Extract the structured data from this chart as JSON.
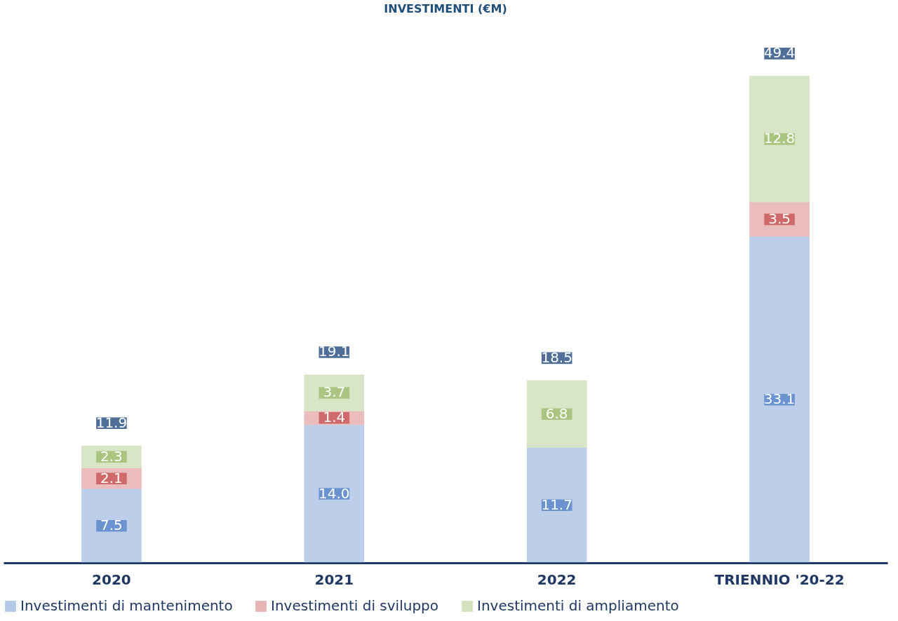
{
  "chart_data": {
    "type": "bar",
    "title": "INVESTIMENTI (€M)",
    "stacked": true,
    "legend": "bottom",
    "categories": [
      "2020",
      "2021",
      "2022",
      "TRIENNIO '20-22"
    ],
    "series": [
      {
        "name": "Investimenti di mantenimento",
        "color": "#6a93cf",
        "values": [
          7.5,
          14.0,
          11.7,
          33.1
        ],
        "value_labels": [
          "7.5",
          "14.0",
          "11.7",
          "33.1"
        ]
      },
      {
        "name": "Investimenti di sviluppo",
        "color": "#d06a6a",
        "values": [
          2.1,
          1.4,
          null,
          3.5
        ],
        "value_labels": [
          "2.1",
          "1.4",
          null,
          "3.5"
        ]
      },
      {
        "name": "Investimenti di ampliamento",
        "color": "#a9c580",
        "values": [
          2.3,
          3.7,
          6.8,
          12.8
        ],
        "value_labels": [
          "2.3",
          "3.7",
          "6.8",
          "12.8"
        ]
      }
    ],
    "totals": [
      "11.9",
      "19.1",
      "18.5",
      "49.4"
    ]
  }
}
